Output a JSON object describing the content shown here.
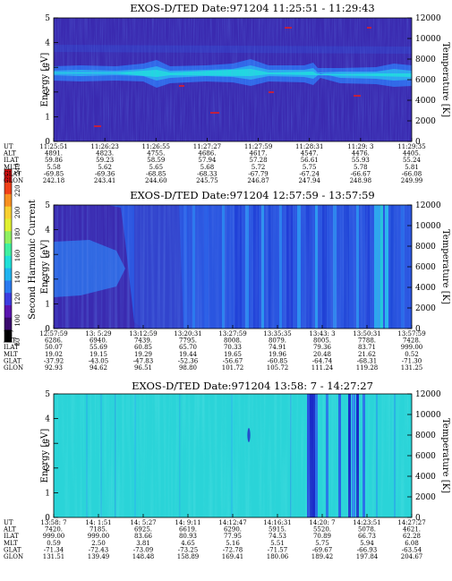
{
  "figure": {
    "colorbar": {
      "label": "Second Harmonic Current",
      "ticks": [
        "80",
        "100",
        "120",
        "140",
        "160",
        "180",
        "200",
        "220",
        "240"
      ],
      "colors": [
        "#000000",
        "#3a0a6e",
        "#5a14b0",
        "#3c3ce0",
        "#2a7af0",
        "#20b4f0",
        "#20e0d8",
        "#40f0a0",
        "#90f060",
        "#e0f030",
        "#f8d030",
        "#f89020",
        "#f04018",
        "#d01010"
      ]
    },
    "panels": [
      {
        "title": "EXOS-D/TED   Date:971204   11:25:51 - 11:29:43",
        "ylabel": "Energy [eV]",
        "yrlabel": "Temperature [K]",
        "ylim": [
          0,
          5
        ],
        "yticks": [
          "0",
          "1",
          "2",
          "3",
          "4",
          "5"
        ],
        "yrticks": [
          "0",
          "2000",
          "4000",
          "6000",
          "8000",
          "10000",
          "12000"
        ],
        "background": "#3a2ab0",
        "table_labels": [
          "UT",
          "ALT",
          "ILAT",
          "MLT",
          "GLAT",
          "GLON"
        ],
        "table": [
          [
            "11:25:51",
            "4891.",
            "59.86",
            "5.58",
            "-69.85",
            "242.18"
          ],
          [
            "11:26:23",
            "4823.",
            "59.23",
            "5.62",
            "-69.36",
            "243.41"
          ],
          [
            "11:26:55",
            "4755.",
            "58.59",
            "5.65",
            "-68.85",
            "244.60"
          ],
          [
            "11:27:27",
            "4686.",
            "57.94",
            "5.68",
            "-68.33",
            "245.75"
          ],
          [
            "11:27:59",
            "4617.",
            "57.28",
            "5.72",
            "-67.79",
            "246.87"
          ],
          [
            "11:28:31",
            "4547.",
            "56.61",
            "5.75",
            "-67.24",
            "247.94"
          ],
          [
            "11:29: 3",
            "4476.",
            "55.93",
            "5.78",
            "-66.67",
            "248.98"
          ],
          [
            "11:29:35",
            "4405.",
            "55.24",
            "5.81",
            "-66.08",
            "249.99"
          ]
        ]
      },
      {
        "title": "EXOS-D/TED   Date:971204   12:57:59 - 13:57:59",
        "ylabel": "Energy [eV]",
        "yrlabel": "Temperature [K]",
        "ylim": [
          0,
          5
        ],
        "yticks": [
          "0",
          "1",
          "2",
          "3",
          "4",
          "5"
        ],
        "yrticks": [
          "0",
          "2000",
          "4000",
          "6000",
          "8000",
          "10000",
          "12000"
        ],
        "background": "#2a55e0",
        "table_labels": [
          "UT",
          "ALT",
          "ILAT",
          "MLT",
          "GLAT",
          "GLON"
        ],
        "table": [
          [
            "12:57:59",
            "6286.",
            "50.07",
            "19.02",
            "-37.92",
            "92.93"
          ],
          [
            "13: 5:29",
            "6940.",
            "55.69",
            "19.15",
            "-43.05",
            "94.62"
          ],
          [
            "13:12:59",
            "7439.",
            "60.85",
            "19.29",
            "-47.83",
            "96.51"
          ],
          [
            "13:20:31",
            "7795.",
            "65.70",
            "19.44",
            "-52.36",
            "98.80"
          ],
          [
            "13:27:59",
            "8008.",
            "70.33",
            "19.65",
            "-56.67",
            "101.72"
          ],
          [
            "13:35:35",
            "8079.",
            "74.91",
            "19.96",
            "-60.85",
            "105.72"
          ],
          [
            "13:43: 3",
            "8005.",
            "79.36",
            "20.48",
            "-64.74",
            "111.24"
          ],
          [
            "13:50:31",
            "7788.",
            "83.71",
            "21.62",
            "-68.31",
            "119.28"
          ],
          [
            "13:57:59",
            "7428.",
            "999.00",
            "0.52",
            "-71.30",
            "131.25"
          ]
        ]
      },
      {
        "title": "EXOS-D/TED   Date:971204   13:58: 7 - 14:27:27",
        "ylabel": "Energy [eV]",
        "yrlabel": "Temperature [K]",
        "ylim": [
          0,
          5
        ],
        "yticks": [
          "0",
          "1",
          "2",
          "3",
          "4",
          "5"
        ],
        "yrticks": [
          "0",
          "2000",
          "4000",
          "6000",
          "8000",
          "10000",
          "12000"
        ],
        "background": "#2ad4d8",
        "table_labels": [
          "UT",
          "ALT",
          "ILAT",
          "MLT",
          "GLAT",
          "GLON"
        ],
        "table": [
          [
            "13:58: 7",
            "7420.",
            "999.00",
            "0.59",
            "-71.34",
            "131.51"
          ],
          [
            "14: 1:51",
            "7185.",
            "999.00",
            "2.50",
            "-72.43",
            "139.49"
          ],
          [
            "14: 5:27",
            "6925.",
            "83.66",
            "3.81",
            "-73.09",
            "148.48"
          ],
          [
            "14: 9:11",
            "6619.",
            "80.93",
            "4.65",
            "-73.25",
            "158.89"
          ],
          [
            "14:12:47",
            "6290.",
            "77.95",
            "5.16",
            "-72.78",
            "169.41"
          ],
          [
            "14:16:31",
            "5915.",
            "74.53",
            "5.51",
            "-71.57",
            "180.06"
          ],
          [
            "14:20: 7",
            "5520.",
            "70.89",
            "5.75",
            "-69.67",
            "189.42"
          ],
          [
            "14:23:51",
            "5078.",
            "66.73",
            "5.94",
            "-66.93",
            "197.84"
          ],
          [
            "14:27:27",
            "4621.",
            "62.28",
            "6.08",
            "-63.54",
            "204.67"
          ]
        ]
      }
    ]
  }
}
